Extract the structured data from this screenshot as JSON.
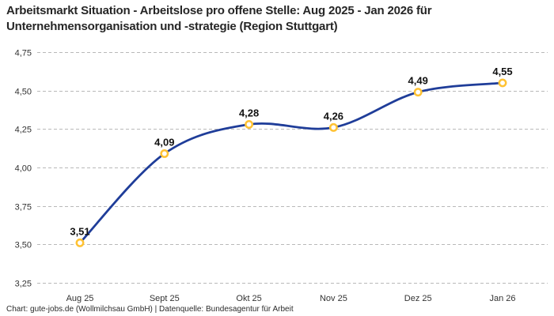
{
  "title": "Arbeitsmarkt Situation - Arbeitslose pro offene Stelle: Aug 2025 - Jan 2026 für Unternehmensorganisation und -strategie (Region Stuttgart)",
  "footer": "Chart: gute-jobs.de (Wollmilchsau GmbH) | Datenquelle: Bundesagentur für Arbeit",
  "colors": {
    "line": "#1f3d99",
    "marker_ring": "#ffc233",
    "marker_fill": "#ffffff",
    "grid": "#b9b9b9",
    "tick_label": "#333333",
    "value_label": "#111111",
    "title_text": "#262626"
  },
  "chart_data": {
    "type": "line",
    "title": "Arbeitsmarkt Situation - Arbeitslose pro offene Stelle: Aug 2025 - Jan 2026 für Unternehmensorganisation und -strategie (Region Stuttgart)",
    "categories": [
      "Aug 25",
      "Sept 25",
      "Okt 25",
      "Nov 25",
      "Dez 25",
      "Jan 26"
    ],
    "values": [
      3.51,
      4.09,
      4.28,
      4.26,
      4.49,
      4.55
    ],
    "value_labels": [
      "3,51",
      "4,09",
      "4,28",
      "4,26",
      "4,49",
      "4,55"
    ],
    "y_tick_values": [
      3.25,
      3.5,
      3.75,
      4.0,
      4.25,
      4.5,
      4.75
    ],
    "y_tick_labels": [
      "3,25",
      "3,50",
      "3,75",
      "4,00",
      "4,25",
      "4,50",
      "4,75"
    ],
    "ylim": [
      3.25,
      4.75
    ],
    "xlabel": "",
    "ylabel": "",
    "grid": "horizontal-dashed",
    "legend": false,
    "line_style": "smooth",
    "marker": "open-circle"
  }
}
